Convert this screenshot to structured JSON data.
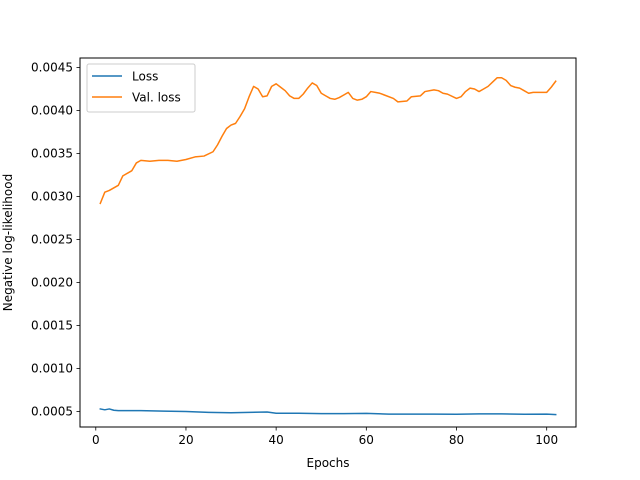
{
  "chart_data": {
    "type": "line",
    "title": "",
    "xlabel": "Epochs",
    "ylabel": "Negative log-likelihood",
    "xlim": [
      -3.5,
      106.5
    ],
    "ylim": [
      0.00032,
      0.00461
    ],
    "x_ticks": [
      0,
      20,
      40,
      60,
      80,
      100
    ],
    "y_ticks": [
      0.0005,
      0.001,
      0.0015,
      0.002,
      0.0025,
      0.003,
      0.0035,
      0.004,
      0.0045
    ],
    "x_tick_labels": [
      "0",
      "20",
      "40",
      "60",
      "80",
      "100"
    ],
    "y_tick_labels": [
      "0.0005",
      "0.0010",
      "0.0015",
      "0.0020",
      "0.0025",
      "0.0030",
      "0.0035",
      "0.0040",
      "0.0045"
    ],
    "grid": false,
    "legend_position": "upper-left",
    "series": [
      {
        "name": "Loss",
        "color": "#1f77b4",
        "points": [
          [
            1,
            0.00053
          ],
          [
            2,
            0.00052
          ],
          [
            3,
            0.00053
          ],
          [
            4,
            0.000515
          ],
          [
            5,
            0.00051
          ],
          [
            10,
            0.00051
          ],
          [
            15,
            0.000505
          ],
          [
            20,
            0.0005
          ],
          [
            25,
            0.00049
          ],
          [
            30,
            0.000485
          ],
          [
            38,
            0.000495
          ],
          [
            40,
            0.00048
          ],
          [
            45,
            0.00048
          ],
          [
            50,
            0.000475
          ],
          [
            55,
            0.000475
          ],
          [
            60,
            0.000478
          ],
          [
            65,
            0.00047
          ],
          [
            70,
            0.00047
          ],
          [
            75,
            0.00047
          ],
          [
            80,
            0.000468
          ],
          [
            85,
            0.000472
          ],
          [
            90,
            0.000472
          ],
          [
            95,
            0.000468
          ],
          [
            100,
            0.00047
          ],
          [
            102,
            0.000465
          ]
        ]
      },
      {
        "name": "Val. loss",
        "color": "#ff7f0e",
        "points": [
          [
            1,
            0.00292
          ],
          [
            2,
            0.00305
          ],
          [
            3,
            0.00307
          ],
          [
            5,
            0.00313
          ],
          [
            6,
            0.00324
          ],
          [
            8,
            0.0033
          ],
          [
            9,
            0.00339
          ],
          [
            10,
            0.00342
          ],
          [
            12,
            0.00341
          ],
          [
            14,
            0.00342
          ],
          [
            16,
            0.00342
          ],
          [
            18,
            0.00341
          ],
          [
            20,
            0.00343
          ],
          [
            22,
            0.00346
          ],
          [
            24,
            0.00347
          ],
          [
            26,
            0.00352
          ],
          [
            27,
            0.0036
          ],
          [
            28,
            0.0037
          ],
          [
            29,
            0.00379
          ],
          [
            30,
            0.00383
          ],
          [
            31,
            0.00385
          ],
          [
            32,
            0.00393
          ],
          [
            33,
            0.00402
          ],
          [
            34,
            0.00416
          ],
          [
            35,
            0.00428
          ],
          [
            36,
            0.00425
          ],
          [
            37,
            0.00416
          ],
          [
            38,
            0.00417
          ],
          [
            39,
            0.00428
          ],
          [
            40,
            0.00431
          ],
          [
            41,
            0.00427
          ],
          [
            42,
            0.00423
          ],
          [
            43,
            0.00417
          ],
          [
            44,
            0.00414
          ],
          [
            45,
            0.00414
          ],
          [
            46,
            0.00419
          ],
          [
            47,
            0.00426
          ],
          [
            48,
            0.00432
          ],
          [
            49,
            0.00429
          ],
          [
            50,
            0.0042
          ],
          [
            51,
            0.00417
          ],
          [
            52,
            0.00414
          ],
          [
            53,
            0.00413
          ],
          [
            54,
            0.00415
          ],
          [
            55,
            0.00418
          ],
          [
            56,
            0.00421
          ],
          [
            57,
            0.00414
          ],
          [
            58,
            0.00412
          ],
          [
            59,
            0.00413
          ],
          [
            60,
            0.00416
          ],
          [
            61,
            0.00422
          ],
          [
            62,
            0.00421
          ],
          [
            63,
            0.0042
          ],
          [
            64,
            0.00418
          ],
          [
            66,
            0.00414
          ],
          [
            67,
            0.0041
          ],
          [
            69,
            0.00411
          ],
          [
            70,
            0.00416
          ],
          [
            72,
            0.00417
          ],
          [
            73,
            0.00422
          ],
          [
            75,
            0.00424
          ],
          [
            76,
            0.00423
          ],
          [
            77,
            0.0042
          ],
          [
            78,
            0.00419
          ],
          [
            80,
            0.00414
          ],
          [
            81,
            0.00416
          ],
          [
            82,
            0.00422
          ],
          [
            83,
            0.00426
          ],
          [
            84,
            0.00425
          ],
          [
            85,
            0.00422
          ],
          [
            86,
            0.00425
          ],
          [
            87,
            0.00428
          ],
          [
            88,
            0.00433
          ],
          [
            89,
            0.00438
          ],
          [
            90,
            0.00438
          ],
          [
            91,
            0.00435
          ],
          [
            92,
            0.00429
          ],
          [
            93,
            0.00427
          ],
          [
            94,
            0.00426
          ],
          [
            95,
            0.00423
          ],
          [
            96,
            0.0042
          ],
          [
            97,
            0.00421
          ],
          [
            98,
            0.00421
          ],
          [
            99,
            0.00421
          ],
          [
            100,
            0.00421
          ],
          [
            101,
            0.00427
          ],
          [
            102,
            0.00434
          ]
        ]
      }
    ]
  }
}
